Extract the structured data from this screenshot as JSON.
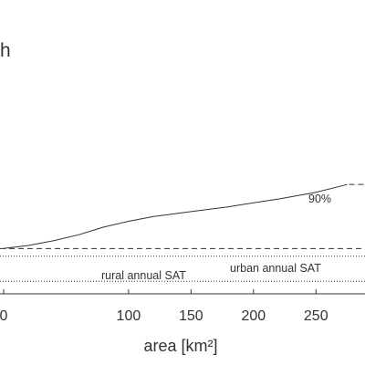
{
  "panel_letter": "h",
  "chart_data": {
    "type": "line",
    "title": "",
    "xlabel": "area [km²]",
    "ylabel": "",
    "xlim": [
      0,
      275
    ],
    "ylim": [
      0,
      1
    ],
    "xticks": [
      0,
      100,
      150,
      200,
      250
    ],
    "xtick_labels": [
      "0",
      "100",
      "150",
      "200",
      "250"
    ],
    "grid": false,
    "series": [
      {
        "name": "",
        "style": "solid",
        "x": [
          0,
          20,
          40,
          60,
          80,
          100,
          120,
          150,
          180,
          200,
          220,
          250,
          275
        ],
        "y": [
          0.0,
          0.015,
          0.04,
          0.07,
          0.11,
          0.14,
          0.165,
          0.19,
          0.215,
          0.235,
          0.255,
          0.29,
          0.33
        ]
      }
    ],
    "reference_lines": [
      {
        "label": "90%",
        "style": "dashed",
        "y": 0.33,
        "x_from": 275,
        "x_to": 285
      },
      {
        "label": "urban annual SAT",
        "style": "dashed",
        "y": -0.001
      },
      {
        "label": "",
        "style": "dotted",
        "y": -0.04
      },
      {
        "label": "rural annual SAT",
        "style": "dotted",
        "y": -0.17
      }
    ]
  },
  "colors": {
    "line": "#333333",
    "text": "#333333",
    "axis": "#333333",
    "background": "#ffffff"
  }
}
